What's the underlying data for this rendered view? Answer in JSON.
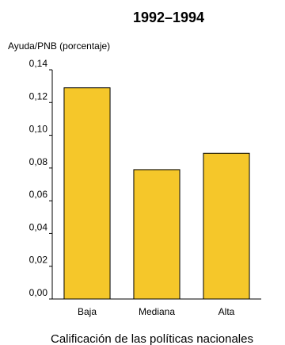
{
  "chart_data": {
    "type": "bar",
    "title": "1992–1994",
    "ylabel": "Ayuda/PNB (porcentaje)",
    "xlabel": "Calificación de las políticas nacionales",
    "categories": [
      "Baja",
      "Mediana",
      "Alta"
    ],
    "values": [
      0.129,
      0.079,
      0.089
    ],
    "ylim": [
      0,
      0.14
    ],
    "yticks": [
      0.0,
      0.02,
      0.04,
      0.06,
      0.08,
      0.1,
      0.12,
      0.14
    ],
    "ytick_labels": [
      "0,00",
      "0,02",
      "0,04",
      "0,06",
      "0,08",
      "0,10",
      "0,12",
      "0,14"
    ],
    "bar_color": "#F5C72A",
    "grid": false
  }
}
